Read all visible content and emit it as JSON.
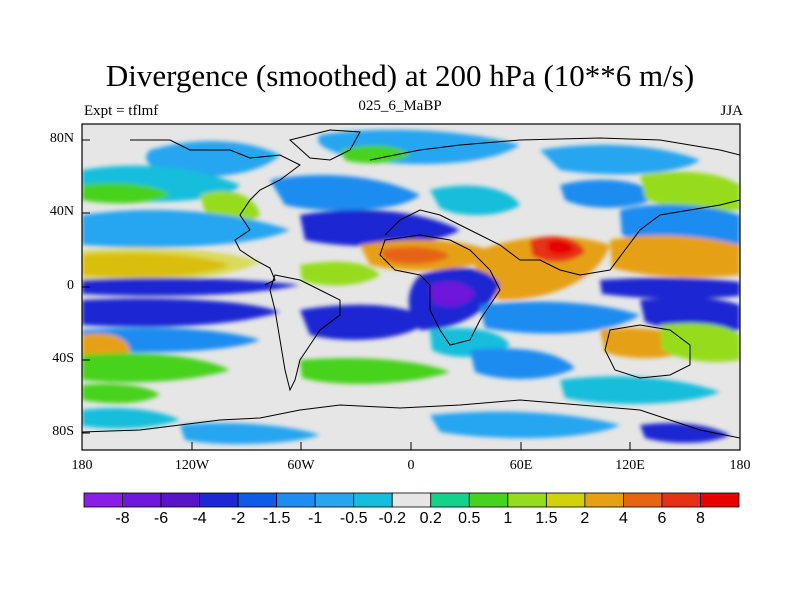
{
  "title": "Divergence (smoothed) at 200 hPa (10**6 m/s)",
  "left_string": "Expt = tflmf",
  "center_string": "025_6_MaBP",
  "right_string": "JJA",
  "lat_ticks": [
    "80N",
    "40N",
    "0",
    "40S",
    "80S"
  ],
  "lon_ticks": [
    "180",
    "120W",
    "60W",
    "0",
    "60E",
    "120E",
    "180"
  ],
  "colorbar": {
    "labels": [
      "-8",
      "-6",
      "-4",
      "-2",
      "-1.5",
      "-1",
      "-0.5",
      "-0.2",
      "0.2",
      "0.5",
      "1",
      "1.5",
      "2",
      "4",
      "6",
      "8"
    ],
    "colors": [
      "#8a1ee6",
      "#6e18dc",
      "#5a14c8",
      "#1e28d2",
      "#0f5ae6",
      "#1e8cf0",
      "#28a5f0",
      "#14bedc",
      "#e6e6e6",
      "#14d28c",
      "#46d21e",
      "#96dc1e",
      "#d2d20a",
      "#e6a014",
      "#e66414",
      "#e63214",
      "#e60000"
    ]
  }
}
